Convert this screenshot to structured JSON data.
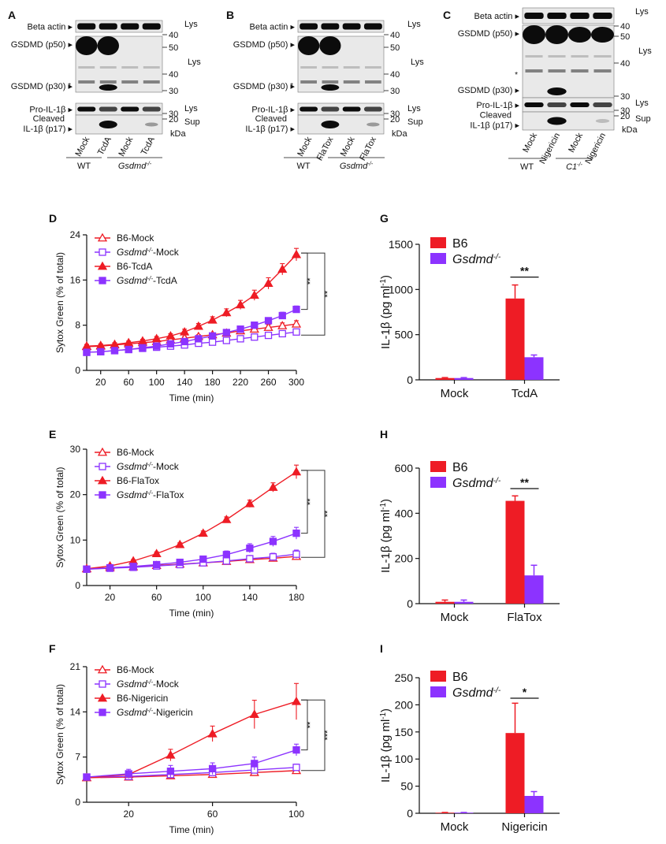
{
  "colors": {
    "red": "#ee1c25",
    "purple": "#8c33ff",
    "axis": "#111111",
    "band": "#0c0c0c",
    "membrane": "#e9e9e9",
    "bracket": "#333333"
  },
  "blots": [
    {
      "panel_label": "A",
      "top_label": "Beta actin",
      "top_right": "Lys",
      "top_right_marker": "40",
      "rows": [
        {
          "label": "GSDMD (p50)",
          "marker": "50"
        },
        {
          "label": "",
          "marker": "40",
          "right": "Lys"
        },
        {
          "label": "GSDMD (p30)",
          "marker": "30"
        },
        {
          "label": "Pro-IL-1β",
          "marker": "30",
          "right": "Lys"
        },
        {
          "label": "Cleaved\nIL-1β (p17)",
          "marker": "20",
          "right": "Sup"
        }
      ],
      "star": "*",
      "kda": "kDa",
      "lanes": [
        "Mock",
        "TcdA",
        "Mock",
        "TcdA"
      ],
      "groups": [
        {
          "label": "WT",
          "italic": false
        },
        {
          "label": "Gsdmd",
          "sup": "-/-",
          "italic": true
        }
      ]
    },
    {
      "panel_label": "B",
      "top_label": "Beta actin",
      "top_right": "Lys",
      "top_right_marker": "40",
      "rows": [
        {
          "label": "GSDMD (p50)",
          "marker": "50"
        },
        {
          "label": "",
          "marker": "40",
          "right": "Lys"
        },
        {
          "label": "GSDMD (p30)",
          "marker": "30"
        },
        {
          "label": "Pro-IL-1β",
          "marker": "30",
          "right": "Lys"
        },
        {
          "label": "Cleaved\nIL-1β (p17)",
          "marker": "20",
          "right": "Sup"
        }
      ],
      "star": "*",
      "kda": "kDa",
      "lanes": [
        "Mock",
        "FlaTox",
        "Mock",
        "FlaTox"
      ],
      "groups": [
        {
          "label": "WT",
          "italic": false
        },
        {
          "label": "Gsdmd",
          "sup": "-/-",
          "italic": true
        }
      ]
    },
    {
      "panel_label": "C",
      "top_label": "Beta actin",
      "top_right": "Lys",
      "top_right_marker": "40",
      "rows": [
        {
          "label": "GSDMD (p50)",
          "marker": "50"
        },
        {
          "label": "",
          "marker": "40",
          "right": "Lys"
        },
        {
          "label": "GSDMD (p30)",
          "marker": "30"
        },
        {
          "label": "Pro-IL-1β",
          "marker": "30",
          "right": "Lys"
        },
        {
          "label": "Cleaved\nIL-1β (p17)",
          "marker": "20",
          "right": "Sup"
        }
      ],
      "star": "*",
      "kda": "kDa",
      "lanes": [
        "Mock",
        "Nigericin",
        "Mock",
        "Nigericin"
      ],
      "groups": [
        {
          "label": "WT",
          "italic": false
        },
        {
          "label": "C1",
          "sup": "-/-",
          "italic": true
        }
      ]
    }
  ],
  "chart_data": [
    {
      "panel_label": "D",
      "type": "line",
      "xlabel": "Time (min)",
      "ylabel": "Sytox Green (% of total)",
      "xlim": [
        0,
        300
      ],
      "ylim": [
        0,
        24
      ],
      "xticks": [
        20,
        60,
        100,
        140,
        180,
        220,
        260,
        300
      ],
      "yticks": [
        0,
        8,
        16,
        24
      ],
      "x": [
        0,
        20,
        40,
        60,
        80,
        100,
        120,
        140,
        160,
        180,
        200,
        220,
        240,
        260,
        280,
        300
      ],
      "series": [
        {
          "name": "B6-Mock",
          "sup": "",
          "marker": "triangle-open",
          "color": "red",
          "values": [
            4.2,
            4.3,
            4.5,
            4.7,
            4.9,
            5.1,
            5.4,
            5.7,
            6.0,
            6.3,
            6.6,
            7.0,
            7.3,
            7.6,
            7.9,
            8.2
          ],
          "err": [
            0.3,
            0.3,
            0.3,
            0.3,
            0.3,
            0.3,
            0.3,
            0.3,
            0.3,
            0.3,
            0.4,
            0.4,
            0.4,
            0.5,
            0.5,
            0.6
          ]
        },
        {
          "name": "Gsdmd",
          "sup": "-/-",
          "suffix": "-Mock",
          "marker": "square-open",
          "color": "purple",
          "values": [
            3.2,
            3.3,
            3.5,
            3.7,
            3.9,
            4.1,
            4.3,
            4.5,
            4.8,
            5.0,
            5.3,
            5.6,
            5.9,
            6.2,
            6.5,
            6.8
          ],
          "err": [
            0.3,
            0.3,
            0.3,
            0.3,
            0.3,
            0.3,
            0.3,
            0.3,
            0.3,
            0.3,
            0.3,
            0.3,
            0.4,
            0.4,
            0.4,
            0.5
          ]
        },
        {
          "name": "B6-TcdA",
          "sup": "",
          "marker": "triangle",
          "color": "red",
          "values": [
            4.3,
            4.4,
            4.6,
            4.9,
            5.2,
            5.6,
            6.1,
            6.8,
            7.8,
            8.9,
            10.2,
            11.6,
            13.3,
            15.4,
            17.9,
            20.5
          ],
          "err": [
            0.3,
            0.3,
            0.3,
            0.3,
            0.3,
            0.4,
            0.4,
            0.5,
            0.5,
            0.6,
            0.7,
            0.8,
            0.9,
            1.0,
            1.0,
            1.1
          ]
        },
        {
          "name": "Gsdmd",
          "sup": "-/-",
          "suffix": "-TcdA",
          "marker": "square",
          "color": "purple",
          "values": [
            3.2,
            3.3,
            3.5,
            3.7,
            4.0,
            4.3,
            4.7,
            5.1,
            5.6,
            6.1,
            6.7,
            7.3,
            8.0,
            8.8,
            9.7,
            10.8
          ],
          "err": [
            0.3,
            0.3,
            0.3,
            0.3,
            0.3,
            0.3,
            0.3,
            0.3,
            0.4,
            0.4,
            0.4,
            0.5,
            0.5,
            0.5,
            0.6,
            0.6
          ]
        }
      ],
      "sig": [
        "**",
        "**"
      ]
    },
    {
      "panel_label": "E",
      "type": "line",
      "xlabel": "Time (min)",
      "ylabel": "Sytox Green (% of total)",
      "xlim": [
        0,
        180
      ],
      "ylim": [
        0,
        30
      ],
      "xticks": [
        20,
        60,
        100,
        140,
        180
      ],
      "yticks": [
        0,
        10,
        20,
        30
      ],
      "x": [
        0,
        20,
        40,
        60,
        80,
        100,
        120,
        140,
        160,
        180
      ],
      "series": [
        {
          "name": "B6-Mock",
          "sup": "",
          "marker": "triangle-open",
          "color": "red",
          "values": [
            3.7,
            3.9,
            4.1,
            4.4,
            4.7,
            5.0,
            5.3,
            5.7,
            6.0,
            6.4
          ],
          "err": [
            0.3,
            0.3,
            0.3,
            0.3,
            0.3,
            0.3,
            0.3,
            0.4,
            0.4,
            0.5
          ]
        },
        {
          "name": "Gsdmd",
          "sup": "-/-",
          "suffix": "-Mock",
          "marker": "square-open",
          "color": "purple",
          "values": [
            3.6,
            3.8,
            4.0,
            4.3,
            4.6,
            5.0,
            5.4,
            5.9,
            6.3,
            6.9
          ],
          "err": [
            0.3,
            0.3,
            0.3,
            0.3,
            0.4,
            0.5,
            0.6,
            0.7,
            0.8,
            0.9
          ]
        },
        {
          "name": "B6-FlaTox",
          "sup": "",
          "marker": "triangle",
          "color": "red",
          "values": [
            3.7,
            4.3,
            5.4,
            7.0,
            9.0,
            11.5,
            14.5,
            18.0,
            21.6,
            25.0
          ],
          "err": [
            0.3,
            0.3,
            0.3,
            0.4,
            0.4,
            0.5,
            0.6,
            0.8,
            1.0,
            1.5
          ]
        },
        {
          "name": "Gsdmd",
          "sup": "-/-",
          "suffix": "-FlaTox",
          "marker": "square",
          "color": "purple",
          "values": [
            3.6,
            3.9,
            4.2,
            4.6,
            5.1,
            5.8,
            6.8,
            8.2,
            9.7,
            11.5
          ],
          "err": [
            0.3,
            0.3,
            0.3,
            0.3,
            0.4,
            0.5,
            0.8,
            1.0,
            1.1,
            1.3
          ]
        }
      ],
      "sig": [
        "**",
        "**"
      ]
    },
    {
      "panel_label": "F",
      "type": "line",
      "xlabel": "Time (min)",
      "ylabel": "Sytox Green (% of total)",
      "xlim": [
        0,
        100
      ],
      "ylim": [
        0,
        21
      ],
      "xticks": [
        20,
        60,
        100
      ],
      "yticks": [
        0,
        7,
        14,
        21
      ],
      "x": [
        0,
        20,
        40,
        60,
        80,
        100
      ],
      "series": [
        {
          "name": "B6-Mock",
          "sup": "",
          "marker": "triangle-open",
          "color": "red",
          "values": [
            3.8,
            3.9,
            4.1,
            4.3,
            4.6,
            4.9
          ],
          "err": [
            0.3,
            0.3,
            0.3,
            0.3,
            0.3,
            0.4
          ]
        },
        {
          "name": "Gsdmd",
          "sup": "-/-",
          "suffix": "-Mock",
          "marker": "square-open",
          "color": "purple",
          "values": [
            3.9,
            4.0,
            4.3,
            4.6,
            5.0,
            5.4
          ],
          "err": [
            0.3,
            0.3,
            0.3,
            0.3,
            0.4,
            0.5
          ]
        },
        {
          "name": "B6-Nigericin",
          "sup": "",
          "marker": "triangle",
          "color": "red",
          "values": [
            3.8,
            4.3,
            7.3,
            10.6,
            13.6,
            15.6
          ],
          "err": [
            0.3,
            0.4,
            0.9,
            1.2,
            2.2,
            2.8
          ]
        },
        {
          "name": "Gsdmd",
          "sup": "-/-",
          "suffix": "-Nigericin",
          "marker": "square",
          "color": "purple",
          "values": [
            3.9,
            4.4,
            4.8,
            5.2,
            6.0,
            8.1
          ],
          "err": [
            0.3,
            0.7,
            0.9,
            0.9,
            1.0,
            0.9
          ]
        }
      ],
      "sig": [
        "**",
        "***"
      ]
    },
    {
      "panel_label": "G",
      "type": "bar",
      "ylabel": "IL-1β (pg ml",
      "ylabel_sup": "-1",
      "ylabel_end": ")",
      "ylim": [
        0,
        1500
      ],
      "yticks": [
        0,
        500,
        1000,
        1500
      ],
      "categories": [
        "Mock",
        "TcdA"
      ],
      "series": [
        {
          "name": "B6",
          "sup": "",
          "color": "red",
          "values": [
            20,
            900
          ],
          "err": [
            5,
            150
          ]
        },
        {
          "name": "Gsdmd",
          "sup": "-/-",
          "color": "purple",
          "values": [
            20,
            250
          ],
          "err": [
            5,
            25
          ]
        }
      ],
      "sig": "**"
    },
    {
      "panel_label": "H",
      "type": "bar",
      "ylabel": "IL-1β (pg ml",
      "ylabel_sup": "-1",
      "ylabel_end": ")",
      "ylim": [
        0,
        600
      ],
      "yticks": [
        0,
        200,
        400,
        600
      ],
      "categories": [
        "Mock",
        "FlaTox"
      ],
      "series": [
        {
          "name": "B6",
          "sup": "",
          "color": "red",
          "values": [
            8,
            455
          ],
          "err": [
            8,
            22
          ]
        },
        {
          "name": "Gsdmd",
          "sup": "-/-",
          "color": "purple",
          "values": [
            8,
            125
          ],
          "err": [
            8,
            45
          ]
        }
      ],
      "sig": "**"
    },
    {
      "panel_label": "I",
      "type": "bar",
      "ylabel": "IL-1β (pg ml",
      "ylabel_sup": "-1",
      "ylabel_end": ")",
      "ylim": [
        0,
        250
      ],
      "yticks": [
        0,
        50,
        100,
        150,
        200,
        250
      ],
      "categories": [
        "Mock",
        "Nigericin"
      ],
      "series": [
        {
          "name": "B6",
          "sup": "",
          "color": "red",
          "values": [
            1,
            148
          ],
          "err": [
            0.5,
            55
          ]
        },
        {
          "name": "Gsdmd",
          "sup": "-/-",
          "color": "purple",
          "values": [
            1,
            32
          ],
          "err": [
            0.5,
            8
          ]
        }
      ],
      "sig": "*"
    }
  ]
}
